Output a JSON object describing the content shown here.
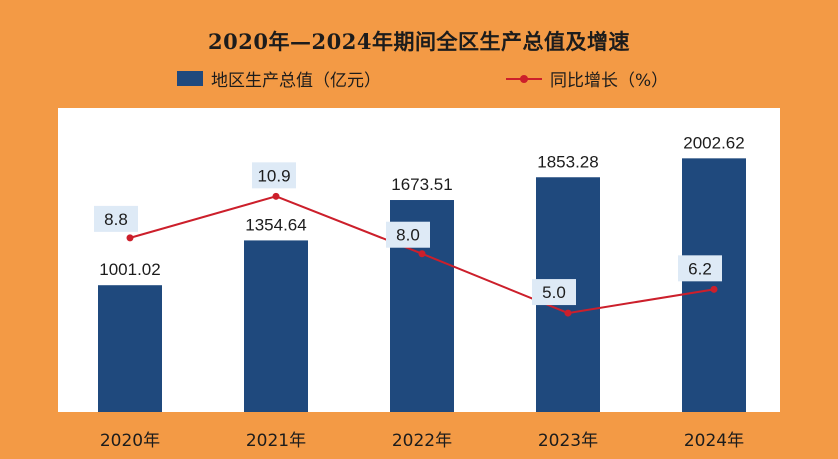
{
  "chart_data": {
    "type": "bar",
    "title": "2020年—2024年期间全区生产总值及增速",
    "categories": [
      "2020年",
      "2021年",
      "2022年",
      "2023年",
      "2024年"
    ],
    "series": [
      {
        "name": "地区生产总值（亿元）",
        "type": "bar",
        "values": [
          1001.02,
          1354.64,
          1673.51,
          1853.28,
          2002.62
        ],
        "color": "#1f497d"
      },
      {
        "name": "同比增长（%）",
        "type": "line",
        "values": [
          8.8,
          10.9,
          8.0,
          5.0,
          6.2
        ],
        "labels": [
          "8.8",
          "10.9",
          "8.0",
          "5.0",
          "6.2"
        ],
        "color": "#cc1f2b"
      }
    ],
    "bar_labels": [
      "1001.02",
      "1354.64",
      "1673.51",
      "1853.28",
      "2002.62"
    ],
    "bar_scale_max": 2400,
    "line_scale": [
      0,
      14
    ],
    "legend_position": "top-center",
    "grid": false
  },
  "colors": {
    "background": "#f39a45",
    "panel": "#ffffff",
    "label_box": "#deeaf6"
  }
}
